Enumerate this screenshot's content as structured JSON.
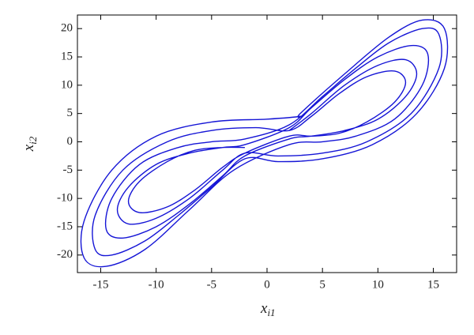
{
  "chart_data": {
    "type": "line",
    "xlabel": [
      "x",
      "i1"
    ],
    "ylabel": [
      "x",
      "i2"
    ],
    "xlim": [
      -17.1,
      17.1
    ],
    "ylim": [
      -23.1,
      22.4
    ],
    "xticks": [
      -15,
      -10,
      -5,
      0,
      5,
      10,
      15
    ],
    "yticks": [
      -20,
      -15,
      -10,
      -5,
      0,
      5,
      10,
      15,
      20
    ],
    "grid": false,
    "series": [
      {
        "color": "#1515d6",
        "x": [
          2,
          4,
          7,
          10,
          12.5,
          13.5,
          12.5,
          10,
          7,
          4,
          2,
          -2,
          -4,
          -7,
          -10,
          -13,
          -14.5,
          -14,
          -11.5,
          -8,
          -5,
          -2,
          2,
          5,
          8,
          11,
          14,
          15.5,
          15.5,
          13,
          9,
          5,
          1,
          -2,
          -4,
          -7,
          -10,
          -12.5,
          -13.5,
          -12.5,
          -10,
          -7,
          -4,
          -2,
          2,
          4,
          7,
          10,
          13,
          14.5,
          14,
          11.5,
          8,
          5,
          2,
          -3,
          -7,
          -11,
          -14.5,
          -16.5,
          -16.5,
          -14,
          -10,
          -5,
          0,
          3,
          3,
          7,
          11,
          14,
          16,
          16,
          13.5,
          9.5,
          5,
          1,
          -2,
          -5,
          -8,
          -11,
          -14,
          -15.5,
          -15.5,
          -13,
          -9,
          -5,
          -1,
          2,
          4,
          6.5,
          9,
          11.5,
          12.5,
          11.5,
          9,
          6.5,
          4,
          2,
          -2,
          -4,
          -6.5,
          -9,
          -11.5,
          -12.5,
          -11.5,
          -9,
          -6.5,
          -4,
          -2
        ],
        "values": [
          2,
          5,
          10,
          13.5,
          14.5,
          12,
          8,
          4,
          2,
          1,
          0.5,
          -2.5,
          -6,
          -11,
          -15,
          -17,
          -15.5,
          -10,
          -4,
          -1,
          0,
          0.5,
          3,
          8,
          13,
          17.5,
          20,
          19,
          13,
          5,
          0,
          -2,
          -2.5,
          -2,
          -5,
          -10,
          -13.5,
          -14.5,
          -12,
          -8,
          -4,
          -2,
          -1,
          -0.5,
          2.5,
          6,
          11,
          15,
          17,
          15.5,
          10,
          4,
          1,
          0,
          -0.5,
          -5,
          -12,
          -19,
          -22,
          -20.5,
          -14,
          -5,
          1,
          3.5,
          4,
          4.5,
          5,
          12,
          18.5,
          21.5,
          20,
          13,
          5,
          -0.5,
          -3,
          -3.5,
          -3,
          -8,
          -13,
          -17.5,
          -20,
          -19,
          -13,
          -5,
          0,
          2,
          2.5,
          2,
          4.5,
          8.5,
          11.5,
          12.5,
          10.5,
          7,
          3.5,
          1.5,
          1,
          1,
          -2,
          -4.5,
          -8.5,
          -11.5,
          -12.5,
          -10.5,
          -7,
          -3.5,
          -1.5,
          -1,
          -1
        ]
      }
    ]
  }
}
